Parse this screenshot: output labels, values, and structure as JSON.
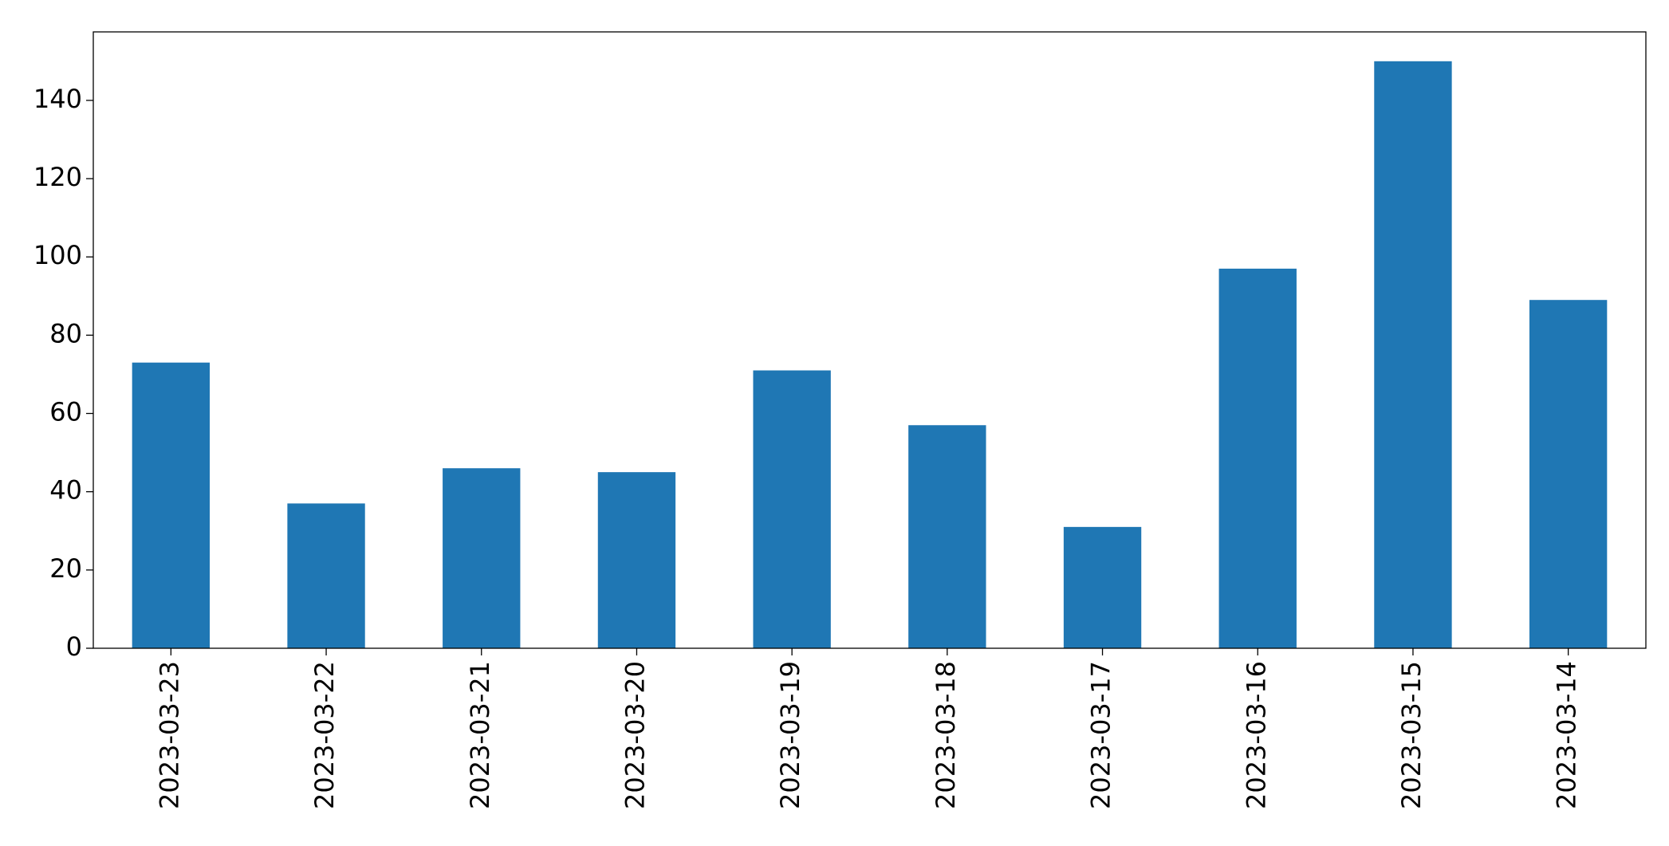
{
  "chart_data": {
    "type": "bar",
    "categories": [
      "2023-03-23",
      "2023-03-22",
      "2023-03-21",
      "2023-03-20",
      "2023-03-19",
      "2023-03-18",
      "2023-03-17",
      "2023-03-16",
      "2023-03-15",
      "2023-03-14"
    ],
    "values": [
      73,
      37,
      46,
      45,
      71,
      57,
      31,
      97,
      150,
      89
    ],
    "color": "#1f77b4",
    "ylim": [
      0,
      157.5
    ],
    "yticks": [
      0,
      20,
      40,
      60,
      80,
      100,
      120,
      140
    ],
    "grid": false
  }
}
